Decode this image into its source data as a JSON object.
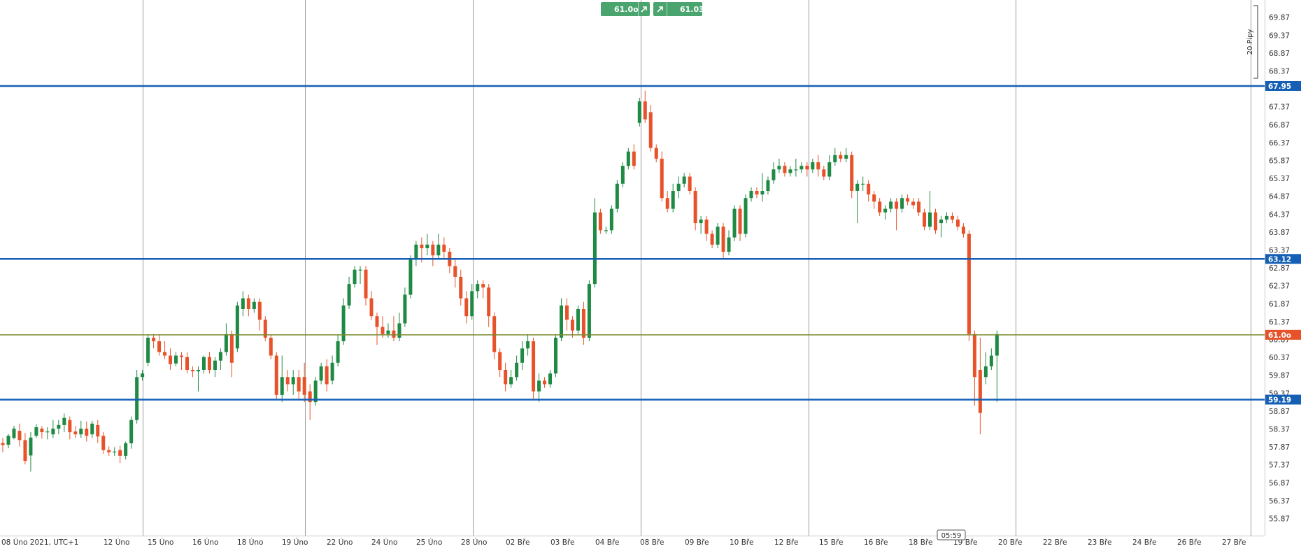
{
  "colors": {
    "bull": "#1e8a44",
    "bear": "#e8522a",
    "hline": "#1560b5",
    "price_line": "#7a8a2e",
    "grid": "#9a9a9a",
    "trade_box": "#4aa46e",
    "price_tag": "#e8522a"
  },
  "icons": {
    "trade_up": "arrow-up-right-icon"
  },
  "trade": {
    "sell_price": "61.0o",
    "buy_price": "61.03"
  },
  "pip_label": "20 Pipy",
  "time_cursor": "05:59",
  "chart_data": {
    "type": "candlestick",
    "timezone_label": "08 Úno 2021, UTC+1",
    "x_labels": [
      "12 Úno",
      "15 Úno",
      "16 Úno",
      "18 Úno",
      "19 Úno",
      "22 Úno",
      "24 Úno",
      "25 Úno",
      "28 Úno",
      "02 Bře",
      "03 Bře",
      "04 Bře",
      "08 Bře",
      "09 Bře",
      "10 Bře",
      "12 Bře",
      "15 Bře",
      "16 Bře",
      "18 Bře",
      "19 Bře",
      "20 Bře",
      "22 Bře",
      "23 Bře",
      "24 Bře",
      "26 Bře",
      "27 Bře"
    ],
    "y_ticks": [
      "69.87",
      "69.37",
      "68.87",
      "68.37",
      "67.37",
      "66.87",
      "66.37",
      "65.87",
      "65.37",
      "64.87",
      "64.37",
      "63.87",
      "63.37",
      "62.87",
      "62.37",
      "61.87",
      "61.37",
      "60.87",
      "60.37",
      "59.87",
      "59.37",
      "58.87",
      "58.37",
      "57.87",
      "57.37",
      "56.87",
      "56.37",
      "55.87"
    ],
    "ylim": [
      55.6,
      70.2
    ],
    "levels": [
      {
        "value": 67.95,
        "label": "67.95"
      },
      {
        "value": 63.12,
        "label": "63.12"
      },
      {
        "value": 59.19,
        "label": "59.19"
      }
    ],
    "current_price": {
      "value": 61.0,
      "label": "61.0o"
    },
    "candles": [
      [
        57.98,
        57.92,
        57.72,
        58.12
      ],
      [
        57.93,
        58.18,
        57.83,
        58.23
      ],
      [
        58.12,
        58.38,
        58.08,
        58.46
      ],
      [
        58.32,
        58.06,
        57.88,
        58.52
      ],
      [
        58.06,
        57.48,
        57.38,
        58.26
      ],
      [
        57.63,
        58.13,
        57.18,
        58.28
      ],
      [
        58.18,
        58.42,
        58.12,
        58.5
      ],
      [
        58.38,
        58.28,
        58.1,
        58.45
      ],
      [
        58.28,
        58.3,
        58.08,
        58.42
      ],
      [
        58.22,
        58.38,
        58.12,
        58.62
      ],
      [
        58.38,
        58.48,
        58.22,
        58.62
      ],
      [
        58.48,
        58.68,
        58.28,
        58.8
      ],
      [
        58.62,
        58.28,
        58.08,
        58.72
      ],
      [
        58.3,
        58.22,
        58.12,
        58.45
      ],
      [
        58.22,
        58.38,
        58.12,
        58.6
      ],
      [
        58.38,
        58.18,
        58.02,
        58.58
      ],
      [
        58.22,
        58.52,
        58.12,
        58.6
      ],
      [
        58.48,
        58.16,
        57.98,
        58.62
      ],
      [
        58.18,
        57.78,
        57.68,
        58.28
      ],
      [
        57.78,
        57.72,
        57.62,
        57.88
      ],
      [
        57.72,
        57.74,
        57.62,
        57.86
      ],
      [
        57.78,
        57.62,
        57.42,
        57.9
      ],
      [
        57.62,
        57.97,
        57.52,
        58.02
      ],
      [
        57.97,
        58.62,
        57.82,
        58.72
      ],
      [
        58.62,
        59.82,
        58.52,
        60.02
      ],
      [
        59.82,
        59.92,
        59.72,
        60.02
      ],
      [
        60.22,
        60.92,
        60.12,
        61.02
      ],
      [
        60.92,
        60.82,
        60.62,
        61.02
      ],
      [
        60.82,
        60.52,
        60.42,
        61.02
      ],
      [
        60.52,
        60.42,
        60.32,
        60.82
      ],
      [
        60.42,
        60.18,
        60.02,
        60.62
      ],
      [
        60.2,
        60.42,
        60.12,
        60.52
      ],
      [
        60.42,
        60.38,
        60.02,
        60.52
      ],
      [
        60.38,
        60.02,
        59.92,
        60.52
      ],
      [
        60.02,
        59.98,
        59.82,
        60.12
      ],
      [
        59.98,
        60.02,
        59.42,
        60.12
      ],
      [
        60.02,
        60.38,
        59.92,
        60.42
      ],
      [
        60.38,
        60.02,
        59.92,
        60.52
      ],
      [
        60.02,
        60.28,
        59.82,
        60.38
      ],
      [
        60.28,
        60.52,
        60.02,
        60.62
      ],
      [
        60.52,
        61.02,
        60.42,
        61.32
      ],
      [
        61.02,
        60.22,
        59.82,
        61.12
      ],
      [
        60.62,
        61.82,
        60.52,
        61.92
      ],
      [
        61.72,
        62.02,
        61.52,
        62.22
      ],
      [
        62.02,
        61.72,
        61.52,
        62.12
      ],
      [
        61.72,
        61.92,
        61.62,
        62.02
      ],
      [
        61.92,
        61.42,
        61.12,
        62.02
      ],
      [
        61.42,
        60.92,
        60.82,
        61.52
      ],
      [
        60.92,
        60.42,
        60.32,
        61.02
      ],
      [
        60.42,
        59.32,
        59.22,
        60.52
      ],
      [
        59.32,
        59.82,
        59.12,
        60.42
      ],
      [
        59.82,
        59.62,
        59.42,
        60.02
      ],
      [
        59.62,
        59.82,
        59.32,
        60.02
      ],
      [
        59.82,
        59.42,
        59.22,
        60.02
      ],
      [
        59.82,
        59.32,
        59.12,
        60.22
      ],
      [
        59.42,
        59.12,
        58.62,
        59.62
      ],
      [
        59.12,
        59.72,
        59.02,
        59.82
      ],
      [
        59.72,
        60.12,
        59.62,
        60.22
      ],
      [
        60.12,
        59.62,
        59.42,
        60.32
      ],
      [
        59.72,
        60.22,
        59.62,
        60.42
      ],
      [
        60.22,
        60.82,
        60.12,
        61.02
      ],
      [
        60.82,
        61.82,
        60.72,
        62.02
      ],
      [
        61.82,
        62.42,
        61.72,
        62.62
      ],
      [
        62.42,
        62.82,
        62.32,
        62.92
      ],
      [
        62.82,
        62.82,
        62.42,
        62.92
      ],
      [
        62.82,
        62.02,
        61.82,
        62.92
      ],
      [
        62.02,
        61.52,
        61.42,
        62.22
      ],
      [
        61.52,
        61.22,
        60.72,
        61.62
      ],
      [
        61.22,
        61.02,
        60.92,
        61.52
      ],
      [
        61.02,
        61.12,
        60.92,
        61.32
      ],
      [
        61.12,
        60.92,
        60.82,
        61.52
      ],
      [
        60.92,
        61.32,
        60.82,
        61.62
      ],
      [
        61.32,
        62.12,
        61.22,
        62.32
      ],
      [
        62.12,
        63.12,
        62.02,
        63.22
      ],
      [
        63.12,
        63.52,
        62.92,
        63.62
      ],
      [
        63.52,
        63.42,
        63.02,
        63.72
      ],
      [
        63.42,
        63.52,
        63.22,
        63.82
      ],
      [
        63.52,
        63.22,
        62.92,
        63.62
      ],
      [
        63.22,
        63.52,
        63.12,
        63.82
      ],
      [
        63.52,
        63.32,
        63.12,
        63.72
      ],
      [
        63.32,
        62.92,
        62.72,
        63.42
      ],
      [
        62.92,
        62.62,
        62.32,
        63.12
      ],
      [
        62.62,
        62.02,
        61.82,
        62.82
      ],
      [
        62.02,
        61.52,
        61.32,
        62.22
      ],
      [
        61.52,
        62.22,
        61.42,
        62.42
      ],
      [
        62.22,
        62.42,
        62.02,
        62.52
      ],
      [
        62.42,
        62.32,
        62.02,
        62.52
      ],
      [
        62.32,
        61.52,
        61.22,
        62.42
      ],
      [
        61.52,
        60.52,
        60.32,
        61.62
      ],
      [
        60.52,
        60.02,
        59.82,
        60.62
      ],
      [
        60.02,
        59.62,
        59.42,
        60.22
      ],
      [
        59.62,
        59.82,
        59.52,
        60.02
      ],
      [
        59.82,
        60.22,
        59.72,
        60.42
      ],
      [
        60.22,
        60.62,
        60.02,
        60.82
      ],
      [
        60.62,
        60.82,
        60.42,
        61.02
      ],
      [
        60.82,
        59.42,
        59.22,
        60.92
      ],
      [
        59.42,
        59.72,
        59.12,
        59.92
      ],
      [
        59.72,
        59.62,
        59.52,
        59.82
      ],
      [
        59.62,
        59.92,
        59.52,
        60.02
      ],
      [
        59.92,
        60.92,
        59.82,
        61.02
      ],
      [
        60.92,
        61.82,
        60.82,
        62.02
      ],
      [
        61.82,
        61.42,
        61.12,
        62.02
      ],
      [
        61.42,
        61.12,
        60.92,
        61.52
      ],
      [
        61.12,
        61.72,
        61.02,
        61.82
      ],
      [
        61.72,
        60.92,
        60.72,
        61.92
      ],
      [
        60.92,
        62.42,
        60.82,
        62.52
      ],
      [
        62.42,
        64.42,
        62.32,
        64.82
      ],
      [
        64.42,
        63.92,
        63.82,
        64.52
      ],
      [
        63.92,
        63.92,
        63.82,
        64.02
      ],
      [
        63.92,
        64.52,
        63.82,
        64.62
      ],
      [
        64.52,
        65.22,
        64.42,
        65.32
      ],
      [
        65.22,
        65.72,
        65.12,
        65.82
      ],
      [
        65.72,
        66.12,
        65.62,
        66.22
      ],
      [
        66.12,
        65.72,
        65.62,
        66.32
      ],
      [
        66.92,
        67.52,
        66.82,
        67.62
      ],
      [
        67.52,
        67.02,
        66.92,
        67.82
      ],
      [
        67.22,
        66.22,
        66.12,
        67.42
      ],
      [
        66.22,
        65.92,
        65.82,
        66.32
      ],
      [
        65.92,
        64.82,
        64.72,
        66.12
      ],
      [
        64.82,
        64.52,
        64.42,
        65.02
      ],
      [
        64.52,
        65.02,
        64.42,
        65.22
      ],
      [
        65.02,
        65.22,
        64.82,
        65.42
      ],
      [
        65.22,
        65.42,
        65.12,
        65.52
      ],
      [
        65.42,
        65.02,
        64.92,
        65.52
      ],
      [
        65.02,
        64.12,
        63.92,
        65.12
      ],
      [
        64.12,
        64.22,
        63.82,
        64.32
      ],
      [
        64.22,
        63.82,
        63.62,
        64.32
      ],
      [
        63.82,
        63.52,
        63.42,
        63.92
      ],
      [
        63.52,
        64.02,
        63.42,
        64.12
      ],
      [
        64.02,
        63.32,
        63.12,
        64.12
      ],
      [
        63.32,
        63.72,
        63.22,
        63.92
      ],
      [
        63.72,
        64.52,
        63.62,
        64.62
      ],
      [
        64.52,
        63.82,
        63.62,
        64.62
      ],
      [
        63.82,
        64.82,
        63.72,
        64.92
      ],
      [
        64.82,
        65.02,
        64.72,
        65.12
      ],
      [
        65.02,
        64.92,
        64.82,
        65.12
      ],
      [
        64.92,
        65.02,
        64.72,
        65.52
      ],
      [
        65.02,
        65.32,
        64.92,
        65.42
      ],
      [
        65.32,
        65.62,
        65.22,
        65.82
      ],
      [
        65.62,
        65.72,
        65.52,
        65.92
      ],
      [
        65.72,
        65.52,
        65.42,
        65.82
      ],
      [
        65.52,
        65.62,
        65.42,
        65.72
      ],
      [
        65.62,
        65.62,
        65.42,
        65.92
      ],
      [
        65.62,
        65.72,
        65.52,
        65.82
      ],
      [
        65.72,
        65.62,
        65.42,
        65.82
      ],
      [
        65.62,
        65.82,
        65.52,
        65.92
      ],
      [
        65.82,
        65.62,
        65.42,
        66.02
      ],
      [
        65.62,
        65.42,
        65.32,
        65.72
      ],
      [
        65.42,
        65.82,
        65.32,
        66.02
      ],
      [
        65.82,
        66.02,
        65.72,
        66.22
      ],
      [
        66.02,
        65.92,
        65.82,
        66.12
      ],
      [
        65.92,
        66.02,
        65.82,
        66.22
      ],
      [
        66.02,
        65.02,
        64.82,
        66.12
      ],
      [
        65.02,
        65.22,
        64.12,
        65.32
      ],
      [
        65.22,
        65.22,
        65.02,
        65.42
      ],
      [
        65.22,
        64.92,
        64.72,
        65.32
      ],
      [
        64.92,
        64.72,
        64.52,
        65.02
      ],
      [
        64.72,
        64.42,
        64.32,
        64.82
      ],
      [
        64.42,
        64.52,
        64.22,
        64.62
      ],
      [
        64.52,
        64.72,
        64.42,
        64.82
      ],
      [
        64.72,
        64.52,
        63.92,
        64.82
      ],
      [
        64.52,
        64.82,
        64.42,
        64.92
      ],
      [
        64.82,
        64.72,
        64.62,
        64.92
      ],
      [
        64.72,
        64.62,
        64.52,
        64.82
      ],
      [
        64.72,
        64.42,
        64.32,
        64.82
      ],
      [
        64.42,
        64.02,
        63.92,
        64.52
      ],
      [
        64.02,
        64.42,
        63.92,
        65.02
      ],
      [
        64.42,
        63.92,
        63.82,
        64.52
      ],
      [
        64.12,
        64.22,
        63.72,
        64.32
      ],
      [
        64.22,
        64.32,
        64.12,
        64.42
      ],
      [
        64.32,
        64.22,
        64.12,
        64.42
      ],
      [
        64.22,
        64.02,
        63.92,
        64.32
      ],
      [
        64.02,
        63.82,
        63.72,
        64.12
      ],
      [
        63.82,
        61.02,
        60.82,
        63.92
      ],
      [
        61.02,
        59.82,
        59.02,
        61.12
      ],
      [
        60.02,
        58.82,
        58.22,
        60.92
      ],
      [
        59.82,
        60.12,
        59.62,
        60.52
      ],
      [
        60.12,
        60.42,
        60.02,
        60.62
      ],
      [
        60.42,
        61.02,
        59.12,
        61.12
      ]
    ]
  }
}
